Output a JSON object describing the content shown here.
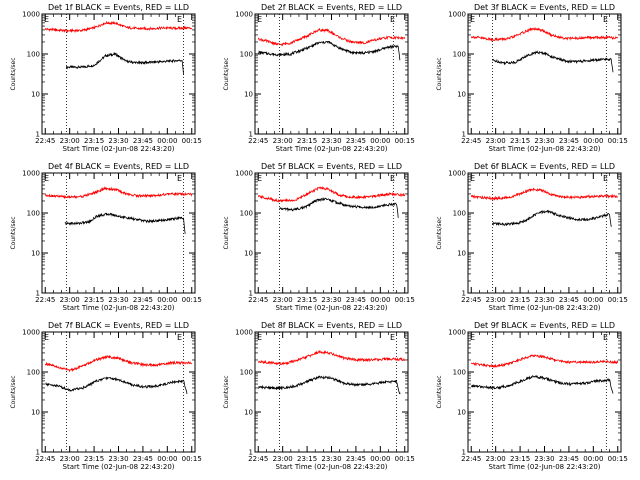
{
  "figure": {
    "background": "#ffffff",
    "colors": {
      "events": "#000000",
      "lld": "#ff0000",
      "axes": "#000000"
    }
  },
  "chart_data": [
    {
      "type": "line",
      "title": "Det 1f BLACK = Events, RED = LLD",
      "xlabel": "Start Time (02-Jun-08 22:43:20)",
      "ylabel": "Counts/sec",
      "yscale": "log",
      "ylim": [
        1,
        1000
      ],
      "x_ticks": [
        "22:45",
        "23:00",
        "23:15",
        "23:30",
        "23:45",
        "00:00",
        "00:15"
      ],
      "y_ticks": [
        "1",
        "10",
        "100",
        "1000"
      ],
      "corner_labels": [
        "E",
        "E"
      ],
      "vlines": [
        "22:58",
        "00:10"
      ],
      "series": [
        {
          "name": "Events",
          "color": "#000000",
          "x": [
            "22:58",
            "23:08",
            "23:15",
            "23:22",
            "23:28",
            "23:35",
            "23:42",
            "23:50",
            "23:58",
            "00:05",
            "00:09",
            "00:10"
          ],
          "y": [
            47,
            47,
            52,
            90,
            100,
            65,
            60,
            62,
            65,
            68,
            70,
            32
          ]
        },
        {
          "name": "LLD",
          "color": "#ff0000",
          "x": [
            "22:45",
            "22:58",
            "23:08",
            "23:15",
            "23:22",
            "23:28",
            "23:35",
            "23:42",
            "23:50",
            "23:58",
            "00:05",
            "00:12",
            "00:15"
          ],
          "y": [
            420,
            380,
            390,
            450,
            600,
            590,
            460,
            430,
            430,
            450,
            440,
            450,
            440
          ]
        }
      ]
    },
    {
      "type": "line",
      "title": "Det 2f BLACK = Events, RED = LLD",
      "xlabel": "Start Time (02-Jun-08 22:43:20)",
      "ylabel": "Counts/sec",
      "yscale": "log",
      "ylim": [
        1,
        1000
      ],
      "x_ticks": [
        "22:45",
        "23:00",
        "23:15",
        "23:30",
        "23:45",
        "00:00",
        "00:15"
      ],
      "y_ticks": [
        "1",
        "10",
        "100",
        "1000"
      ],
      "corner_labels": [
        "E",
        "E"
      ],
      "vlines": [
        "22:58",
        "00:08"
      ],
      "series": [
        {
          "name": "Events",
          "color": "#000000",
          "x": [
            "22:45",
            "22:58",
            "23:05",
            "23:15",
            "23:22",
            "23:28",
            "23:35",
            "23:42",
            "23:50",
            "23:58",
            "00:05",
            "00:11",
            "00:12"
          ],
          "y": [
            110,
            95,
            100,
            140,
            190,
            200,
            140,
            110,
            105,
            120,
            150,
            155,
            70
          ]
        },
        {
          "name": "LLD",
          "color": "#ff0000",
          "x": [
            "22:45",
            "22:58",
            "23:05",
            "23:15",
            "23:22",
            "23:28",
            "23:35",
            "23:42",
            "23:50",
            "23:58",
            "00:05",
            "00:15"
          ],
          "y": [
            240,
            170,
            190,
            280,
            400,
            380,
            260,
            200,
            190,
            230,
            260,
            250
          ]
        }
      ]
    },
    {
      "type": "line",
      "title": "Det 3f BLACK = Events, RED = LLD",
      "xlabel": "Start Time (02-Jun-08 22:43:20)",
      "ylabel": "Counts/sec",
      "yscale": "log",
      "ylim": [
        1,
        1000
      ],
      "x_ticks": [
        "22:45",
        "23:00",
        "23:15",
        "23:30",
        "23:45",
        "00:00",
        "00:15"
      ],
      "y_ticks": [
        "1",
        "10",
        "100",
        "1000"
      ],
      "corner_labels": [
        "E",
        "E"
      ],
      "vlines": [
        "22:58",
        "00:08"
      ],
      "series": [
        {
          "name": "Events",
          "color": "#000000",
          "x": [
            "22:58",
            "23:05",
            "23:12",
            "23:18",
            "23:24",
            "23:30",
            "23:36",
            "23:44",
            "23:52",
            "00:00",
            "00:08",
            "00:11",
            "00:12"
          ],
          "y": [
            70,
            60,
            62,
            85,
            110,
            105,
            80,
            65,
            65,
            70,
            75,
            72,
            35
          ]
        },
        {
          "name": "LLD",
          "color": "#ff0000",
          "x": [
            "22:45",
            "22:58",
            "23:08",
            "23:15",
            "23:22",
            "23:28",
            "23:35",
            "23:42",
            "23:50",
            "23:58",
            "00:05",
            "00:15"
          ],
          "y": [
            270,
            230,
            240,
            320,
            420,
            400,
            290,
            250,
            245,
            260,
            260,
            250
          ]
        }
      ]
    },
    {
      "type": "line",
      "title": "Det 4f BLACK = Events, RED = LLD",
      "xlabel": "Start Time (02-Jun-08 22:43:20)",
      "ylabel": "Counts/sec",
      "yscale": "log",
      "ylim": [
        1,
        1000
      ],
      "x_ticks": [
        "22:45",
        "23:00",
        "23:15",
        "23:30",
        "23:45",
        "00:00",
        "00:15"
      ],
      "y_ticks": [
        "1",
        "10",
        "100",
        "1000"
      ],
      "corner_labels": [
        "E",
        "E"
      ],
      "vlines": [
        "22:58",
        "00:10"
      ],
      "series": [
        {
          "name": "Events",
          "color": "#000000",
          "x": [
            "22:57",
            "23:05",
            "23:12",
            "23:17",
            "23:24",
            "23:32",
            "23:40",
            "23:48",
            "23:56",
            "00:04",
            "00:10",
            "00:11"
          ],
          "y": [
            55,
            55,
            60,
            85,
            95,
            80,
            70,
            62,
            65,
            72,
            75,
            30
          ]
        },
        {
          "name": "LLD",
          "color": "#ff0000",
          "x": [
            "22:45",
            "22:58",
            "23:08",
            "23:15",
            "23:22",
            "23:28",
            "23:35",
            "23:42",
            "23:50",
            "23:58",
            "00:05",
            "00:15"
          ],
          "y": [
            280,
            250,
            260,
            320,
            410,
            390,
            300,
            270,
            270,
            290,
            300,
            290
          ]
        }
      ]
    },
    {
      "type": "line",
      "title": "Det 5f BLACK = Events, RED = LLD",
      "xlabel": "Start Time (02-Jun-08 22:43:20)",
      "ylabel": "Counts/sec",
      "yscale": "log",
      "ylim": [
        1,
        1000
      ],
      "x_ticks": [
        "22:45",
        "23:00",
        "23:15",
        "23:30",
        "23:45",
        "00:00",
        "00:15"
      ],
      "y_ticks": [
        "1",
        "10",
        "100",
        "1000"
      ],
      "corner_labels": [
        "E",
        "E"
      ],
      "vlines": [
        "22:58",
        "00:08"
      ],
      "series": [
        {
          "name": "Events",
          "color": "#000000",
          "x": [
            "22:58",
            "23:06",
            "23:14",
            "23:20",
            "23:26",
            "23:32",
            "23:40",
            "23:48",
            "23:56",
            "00:04",
            "00:10",
            "00:11"
          ],
          "y": [
            130,
            120,
            140,
            200,
            230,
            190,
            150,
            140,
            140,
            160,
            170,
            80
          ]
        },
        {
          "name": "LLD",
          "color": "#ff0000",
          "x": [
            "22:45",
            "22:58",
            "23:08",
            "23:15",
            "23:22",
            "23:28",
            "23:35",
            "23:42",
            "23:50",
            "23:58",
            "00:05",
            "00:15"
          ],
          "y": [
            260,
            200,
            210,
            300,
            420,
            390,
            280,
            250,
            250,
            270,
            300,
            280
          ]
        }
      ]
    },
    {
      "type": "line",
      "title": "Det 6f BLACK = Events, RED = LLD",
      "xlabel": "Start Time (02-Jun-08 22:43:20)",
      "ylabel": "Counts/sec",
      "yscale": "log",
      "ylim": [
        1,
        1000
      ],
      "x_ticks": [
        "22:45",
        "23:00",
        "23:15",
        "23:30",
        "23:45",
        "00:00",
        "00:15"
      ],
      "y_ticks": [
        "1",
        "10",
        "100",
        "1000"
      ],
      "corner_labels": [
        "E",
        "E"
      ],
      "vlines": [
        "22:58",
        "00:08"
      ],
      "series": [
        {
          "name": "Events",
          "color": "#000000",
          "x": [
            "22:58",
            "23:06",
            "23:14",
            "23:20",
            "23:26",
            "23:32",
            "23:40",
            "23:48",
            "23:56",
            "00:04",
            "00:10",
            "00:11"
          ],
          "y": [
            55,
            52,
            55,
            70,
            100,
            110,
            85,
            70,
            68,
            80,
            95,
            45
          ]
        },
        {
          "name": "LLD",
          "color": "#ff0000",
          "x": [
            "22:45",
            "22:58",
            "23:08",
            "23:15",
            "23:22",
            "23:28",
            "23:35",
            "23:42",
            "23:50",
            "23:58",
            "00:05",
            "00:15"
          ],
          "y": [
            260,
            230,
            240,
            300,
            390,
            370,
            280,
            250,
            245,
            260,
            265,
            260
          ]
        }
      ]
    },
    {
      "type": "line",
      "title": "Det 7f BLACK = Events, RED = LLD",
      "xlabel": "Start Time (02-Jun-08 22:43:20)",
      "ylabel": "Counts/sec",
      "yscale": "log",
      "ylim": [
        1,
        1000
      ],
      "x_ticks": [
        "22:45",
        "23:00",
        "23:15",
        "23:30",
        "23:45",
        "00:00",
        "00:15"
      ],
      "y_ticks": [
        "1",
        "10",
        "100",
        "1000"
      ],
      "corner_labels": [
        "E",
        "E"
      ],
      "vlines": [
        "22:58",
        "00:10"
      ],
      "series": [
        {
          "name": "Events",
          "color": "#000000",
          "x": [
            "22:45",
            "22:53",
            "23:00",
            "23:08",
            "23:16",
            "23:23",
            "23:30",
            "23:38",
            "23:46",
            "23:54",
            "00:02",
            "00:10",
            "00:12"
          ],
          "y": [
            50,
            45,
            35,
            40,
            58,
            72,
            65,
            48,
            42,
            45,
            55,
            60,
            30
          ]
        },
        {
          "name": "LLD",
          "color": "#ff0000",
          "x": [
            "22:45",
            "22:53",
            "23:00",
            "23:08",
            "23:16",
            "23:23",
            "23:30",
            "23:38",
            "23:46",
            "23:54",
            "00:02",
            "00:10",
            "00:15"
          ],
          "y": [
            160,
            130,
            110,
            140,
            200,
            240,
            220,
            170,
            150,
            150,
            170,
            170,
            165
          ]
        }
      ]
    },
    {
      "type": "line",
      "title": "Det 8f BLACK = Events, RED = LLD",
      "xlabel": "Start Time (02-Jun-08 22:43:20)",
      "ylabel": "Counts/sec",
      "yscale": "log",
      "ylim": [
        1,
        1000
      ],
      "x_ticks": [
        "22:45",
        "23:00",
        "23:15",
        "23:30",
        "23:45",
        "00:00",
        "00:15"
      ],
      "y_ticks": [
        "1",
        "10",
        "100",
        "1000"
      ],
      "corner_labels": [
        "E",
        "E"
      ],
      "vlines": [
        "22:58",
        "00:10"
      ],
      "series": [
        {
          "name": "Events",
          "color": "#000000",
          "x": [
            "22:45",
            "22:53",
            "23:00",
            "23:08",
            "23:16",
            "23:23",
            "23:30",
            "23:38",
            "23:46",
            "23:54",
            "00:02",
            "00:10",
            "00:12"
          ],
          "y": [
            42,
            40,
            40,
            45,
            60,
            75,
            70,
            52,
            48,
            50,
            55,
            58,
            28
          ]
        },
        {
          "name": "LLD",
          "color": "#ff0000",
          "x": [
            "22:45",
            "22:53",
            "23:00",
            "23:08",
            "23:16",
            "23:23",
            "23:30",
            "23:38",
            "23:46",
            "23:54",
            "00:02",
            "00:10",
            "00:15"
          ],
          "y": [
            180,
            170,
            160,
            190,
            250,
            320,
            290,
            220,
            200,
            200,
            210,
            210,
            205
          ]
        }
      ]
    },
    {
      "type": "line",
      "title": "Det 9f BLACK = Events, RED = LLD",
      "xlabel": "Start Time (02-Jun-08 22:43:20)",
      "ylabel": "Counts/sec",
      "yscale": "log",
      "ylim": [
        1,
        1000
      ],
      "x_ticks": [
        "22:45",
        "23:00",
        "23:15",
        "23:30",
        "23:45",
        "00:00",
        "00:15"
      ],
      "y_ticks": [
        "1",
        "10",
        "100",
        "1000"
      ],
      "corner_labels": [
        "E",
        "E"
      ],
      "vlines": [
        "22:58",
        "00:08"
      ],
      "series": [
        {
          "name": "Events",
          "color": "#000000",
          "x": [
            "22:45",
            "22:53",
            "23:00",
            "23:08",
            "23:16",
            "23:23",
            "23:30",
            "23:38",
            "23:46",
            "23:54",
            "00:02",
            "00:10",
            "00:12"
          ],
          "y": [
            45,
            42,
            40,
            45,
            60,
            78,
            70,
            55,
            50,
            52,
            60,
            62,
            30
          ]
        },
        {
          "name": "LLD",
          "color": "#ff0000",
          "x": [
            "22:45",
            "22:53",
            "23:00",
            "23:08",
            "23:16",
            "23:23",
            "23:30",
            "23:38",
            "23:46",
            "23:54",
            "00:02",
            "00:10",
            "00:15"
          ],
          "y": [
            165,
            150,
            140,
            160,
            210,
            260,
            240,
            190,
            175,
            175,
            180,
            180,
            175
          ]
        }
      ]
    }
  ]
}
